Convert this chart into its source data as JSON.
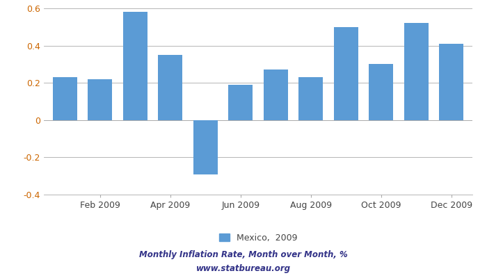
{
  "values": [
    0.23,
    0.22,
    0.58,
    0.35,
    -0.29,
    0.19,
    0.27,
    0.23,
    0.5,
    0.3,
    0.52,
    0.41
  ],
  "bar_color": "#5b9bd5",
  "ylim": [
    -0.4,
    0.6
  ],
  "yticks": [
    -0.4,
    -0.2,
    0.0,
    0.2,
    0.4,
    0.6
  ],
  "xtick_positions": [
    1,
    3,
    5,
    7,
    9,
    11
  ],
  "xtick_labels": [
    "Feb 2009",
    "Apr 2009",
    "Jun 2009",
    "Aug 2009",
    "Oct 2009",
    "Dec 2009"
  ],
  "legend_label": "Mexico,  2009",
  "footer_line1": "Monthly Inflation Rate, Month over Month, %",
  "footer_line2": "www.statbureau.org",
  "background_color": "#ffffff",
  "grid_color": "#aaaaaa",
  "text_color": "#444444",
  "footer_color": "#333388",
  "axis_text_color": "#cc6600"
}
